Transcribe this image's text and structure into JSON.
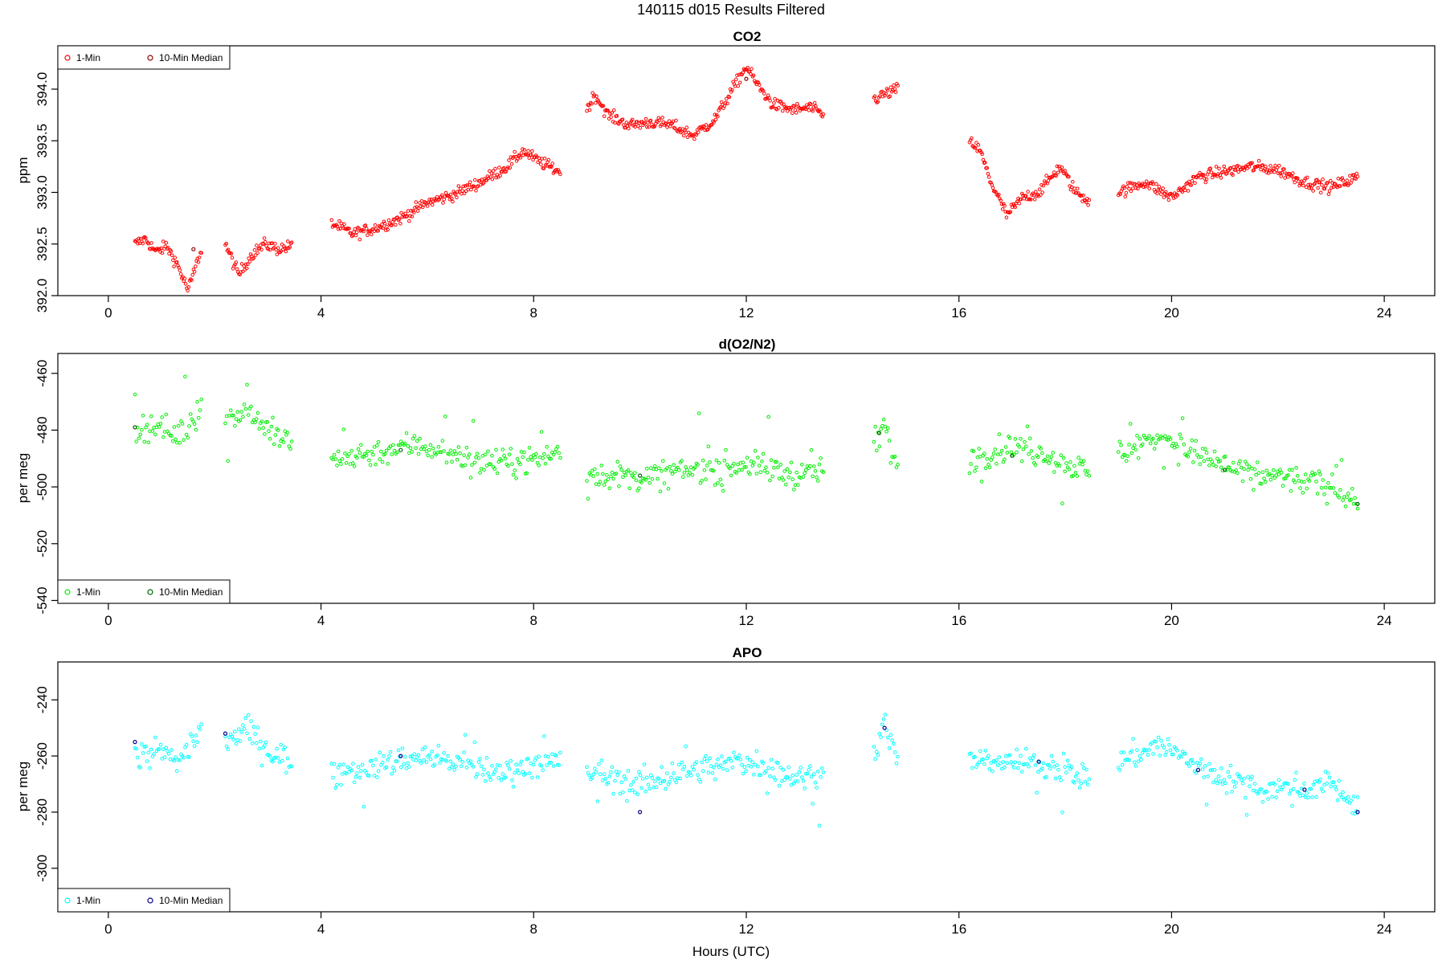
{
  "figure": {
    "title": "140115   d015   Results Filtered",
    "xlabel": "Hours (UTC)"
  },
  "chart_data": [
    {
      "type": "scatter",
      "title": "CO2",
      "xlabel": "",
      "ylabel": "ppm",
      "xlim": [
        -0.95,
        24.95
      ],
      "ylim": [
        392,
        394.42
      ],
      "xticks": [
        0,
        4,
        8,
        12,
        16,
        20,
        24
      ],
      "yticks": [
        392.0,
        392.5,
        393.0,
        393.5,
        394.0
      ],
      "ytick_labels": [
        "392.0",
        "392.5",
        "393.0",
        "393.5",
        "394.0"
      ],
      "legend": {
        "placement": "top-left",
        "entries": [
          "1-Min",
          "10-Min Median"
        ]
      },
      "colors": {
        "one_min": "#ff0000",
        "median": "#8b0000"
      },
      "series": [
        {
          "name": "1-Min",
          "segments": [
            {
              "x": [
                0.5,
                0.7,
                0.9,
                1.1,
                1.3,
                1.5,
                1.75
              ],
              "y": [
                392.5,
                392.55,
                392.42,
                392.48,
                392.3,
                392.05,
                392.45
              ]
            },
            {
              "x": [
                2.2,
                2.45,
                2.7,
                2.95,
                3.2,
                3.45
              ],
              "y": [
                392.5,
                392.2,
                392.4,
                392.5,
                392.45,
                392.48
              ]
            },
            {
              "x": [
                4.2,
                4.6,
                5.0,
                5.5,
                6.0,
                6.5,
                7.0,
                7.5,
                7.8,
                8.1,
                8.5
              ],
              "y": [
                392.7,
                392.6,
                392.65,
                392.75,
                392.9,
                392.98,
                393.1,
                393.25,
                393.4,
                393.3,
                393.2
              ]
            },
            {
              "x": [
                9.0,
                9.15,
                9.4,
                9.8,
                10.2,
                10.6,
                11.0,
                11.4,
                11.8,
                12.0,
                12.2,
                12.5,
                12.9,
                13.2,
                13.45
              ],
              "y": [
                393.8,
                393.95,
                393.75,
                393.65,
                393.68,
                393.65,
                393.55,
                393.7,
                394.05,
                394.22,
                394.05,
                393.85,
                393.8,
                393.82,
                393.75
              ]
            },
            {
              "x": [
                14.4,
                14.6,
                14.85
              ],
              "y": [
                393.9,
                393.95,
                394.0
              ]
            },
            {
              "x": [
                16.2,
                16.4,
                16.6,
                16.9,
                17.2,
                17.5,
                17.9,
                18.2,
                18.45
              ],
              "y": [
                393.5,
                393.4,
                393.1,
                392.78,
                392.95,
                393.0,
                393.25,
                393.0,
                392.92
              ]
            },
            {
              "x": [
                19.0,
                19.5,
                20.0,
                20.5,
                21.0,
                21.5,
                22.0,
                22.5,
                23.0,
                23.5
              ],
              "y": [
                393.0,
                393.1,
                392.95,
                393.15,
                393.2,
                393.25,
                393.22,
                393.1,
                393.05,
                393.15
              ]
            }
          ]
        },
        {
          "name": "10-Min Median",
          "x": [
            1.6,
            12.0
          ],
          "y": [
            392.45,
            394.1
          ]
        }
      ]
    },
    {
      "type": "scatter",
      "title": "d(O2/N2)",
      "xlabel": "",
      "ylabel": "per meg",
      "xlim": [
        -0.95,
        24.95
      ],
      "ylim": [
        -541,
        -453
      ],
      "xticks": [
        0,
        4,
        8,
        12,
        16,
        20,
        24
      ],
      "yticks": [
        -540,
        -520,
        -500,
        -480,
        -460
      ],
      "ytick_labels": [
        "-540",
        "-520",
        "-500",
        "-480",
        "-460"
      ],
      "legend": {
        "placement": "bottom-left",
        "entries": [
          "1-Min",
          "10-Min Median"
        ]
      },
      "colors": {
        "one_min": "#00ee00",
        "median": "#006400"
      },
      "series": [
        {
          "name": "1-Min",
          "segments": [
            {
              "x": [
                0.5,
                0.9,
                1.3,
                1.75
              ],
              "y": [
                -480,
                -478,
                -482,
                -472
              ]
            },
            {
              "x": [
                2.2,
                2.6,
                3.0,
                3.45
              ],
              "y": [
                -478,
                -472,
                -480,
                -485
              ]
            },
            {
              "x": [
                4.2,
                5.0,
                5.8,
                6.5,
                7.3,
                8.0,
                8.5
              ],
              "y": [
                -490,
                -488,
                -485,
                -488,
                -492,
                -490,
                -488
              ]
            },
            {
              "x": [
                9.0,
                10.0,
                11.0,
                12.0,
                13.0,
                13.45
              ],
              "y": [
                -495,
                -497,
                -494,
                -492,
                -496,
                -494
              ]
            },
            {
              "x": [
                14.4,
                14.6,
                14.85
              ],
              "y": [
                -485,
                -478,
                -495
              ]
            },
            {
              "x": [
                16.2,
                17.0,
                17.8,
                18.45
              ],
              "y": [
                -490,
                -486,
                -490,
                -495
              ]
            },
            {
              "x": [
                19.0,
                19.8,
                20.6,
                21.4,
                22.2,
                23.0,
                23.5
              ],
              "y": [
                -488,
                -482,
                -490,
                -495,
                -497,
                -500,
                -505
              ]
            }
          ]
        },
        {
          "name": "10-Min Median",
          "x": [
            0.5,
            5.5,
            10.0,
            14.5,
            17.0,
            21.0,
            23.5
          ],
          "y": [
            -479,
            -487,
            -496,
            -481,
            -489,
            -494,
            -506
          ]
        }
      ]
    },
    {
      "type": "scatter",
      "title": "APO",
      "xlabel": "Hours (UTC)",
      "ylabel": "per meg",
      "xlim": [
        -0.95,
        24.95
      ],
      "ylim": [
        -315.5,
        -226.5
      ],
      "xticks": [
        0,
        4,
        8,
        12,
        16,
        20,
        24
      ],
      "yticks": [
        -300,
        -280,
        -260,
        -240
      ],
      "ytick_labels": [
        "-300",
        "-280",
        "-260",
        "-240"
      ],
      "legend": {
        "placement": "bottom-left",
        "entries": [
          "1-Min",
          "10-Min Median"
        ]
      },
      "colors": {
        "one_min": "#00ffff",
        "median": "#00008b"
      },
      "series": [
        {
          "name": "1-Min",
          "segments": [
            {
              "x": [
                0.5,
                0.9,
                1.3,
                1.75
              ],
              "y": [
                -260,
                -258,
                -262,
                -250
              ]
            },
            {
              "x": [
                2.2,
                2.6,
                3.0,
                3.45
              ],
              "y": [
                -255,
                -250,
                -258,
                -262
              ]
            },
            {
              "x": [
                4.2,
                5.0,
                5.8,
                6.5,
                7.3,
                8.0,
                8.5
              ],
              "y": [
                -265,
                -264,
                -260,
                -262,
                -266,
                -263,
                -262
              ]
            },
            {
              "x": [
                9.0,
                10.0,
                11.0,
                12.0,
                13.0,
                13.45
              ],
              "y": [
                -266,
                -270,
                -265,
                -262,
                -268,
                -266
              ]
            },
            {
              "x": [
                14.4,
                14.6,
                14.85
              ],
              "y": [
                -258,
                -250,
                -262
              ]
            },
            {
              "x": [
                16.2,
                17.0,
                17.8,
                18.45
              ],
              "y": [
                -262,
                -262,
                -264,
                -268
              ]
            },
            {
              "x": [
                19.0,
                19.8,
                20.6,
                21.4,
                22.2,
                23.0,
                23.5
              ],
              "y": [
                -262,
                -256,
                -265,
                -270,
                -272,
                -270,
                -278
              ]
            }
          ]
        },
        {
          "name": "10-Min Median",
          "x": [
            0.5,
            2.2,
            5.5,
            10.0,
            14.6,
            17.5,
            20.5,
            22.5,
            23.5
          ],
          "y": [
            -255,
            -252,
            -260,
            -280,
            -250,
            -262,
            -265,
            -272,
            -280
          ]
        }
      ]
    }
  ]
}
